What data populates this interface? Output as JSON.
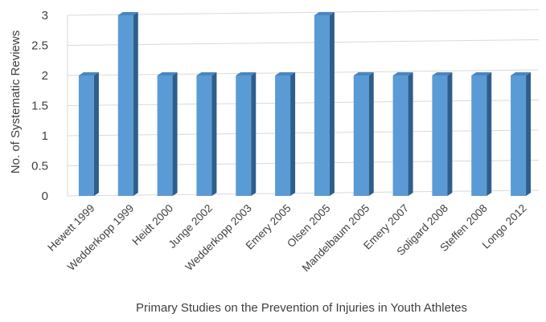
{
  "chart_data": {
    "type": "bar",
    "title": "",
    "xlabel": "Primary Studies on the Prevention of Injuries in Youth Athletes",
    "ylabel": "No. of Systematic Reviews",
    "categories": [
      "Hewett 1999",
      "Wedderkopp 1999",
      "Heidt 2000",
      "Junge 2002",
      "Wedderkopp 2003",
      "Emery 2005",
      "Olsen 2005",
      "Mandelbaum 2005",
      "Emery 2007",
      "Soligard 2008",
      "Steffen 2008",
      "Longo 2012"
    ],
    "values": [
      2,
      3,
      2,
      2,
      2,
      2,
      3,
      2,
      2,
      2,
      2,
      2
    ],
    "ylim": [
      0,
      3
    ],
    "yticks": [
      "0",
      "0.5",
      "1",
      "1.5",
      "2",
      "2.5",
      "3"
    ],
    "grid": true,
    "legend": "none",
    "colors": {
      "bar_front": "#5B9BD5",
      "bar_side": "#2E5E8C",
      "bar_top": "#4A86BE",
      "grid": "#D9D9D9"
    }
  }
}
